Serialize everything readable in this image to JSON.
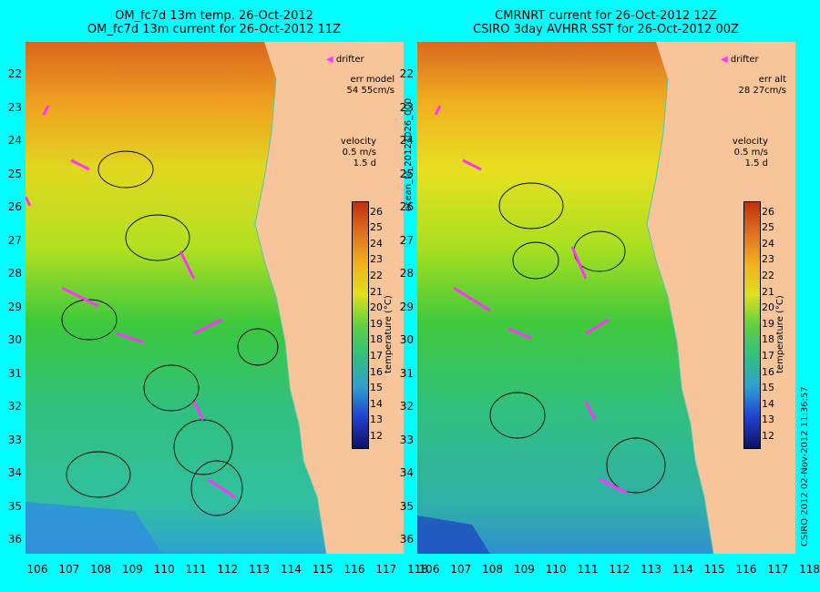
{
  "left_panel": {
    "title_line1": "OM_fc7d 13m temp. 26-Oct-2012",
    "title_line2": "OM_fc7d 13m current for 26-Oct-2012 11Z",
    "legend_drifter": "drifter",
    "err_label": "err model",
    "err_value": "54 55cm/s",
    "velocity_label": "velocity",
    "velocity_scale": "0.5 m/s",
    "velocity_days": "1.5 d"
  },
  "right_panel": {
    "title_line1": "CMRNRT current for 26-Oct-2012 12Z",
    "title_line2": "CSIRO 3day AVHRR SST for 26-Oct-2012 00Z",
    "legend_drifter": "drifter",
    "err_label": "err alt",
    "err_value": "28 27cm/s",
    "velocity_label": "velocity",
    "velocity_scale": "0.5 m/s",
    "velocity_days": "1.5 d"
  },
  "colorbar": {
    "label": "temperature (°C)",
    "ticks": [
      "12",
      "13",
      "14",
      "15",
      "16",
      "17",
      "18",
      "19",
      "20",
      "21",
      "22",
      "23",
      "24",
      "25",
      "26"
    ]
  },
  "axes": {
    "latitudes": [
      "22",
      "23",
      "24",
      "25",
      "26",
      "27",
      "28",
      "29",
      "30",
      "31",
      "32",
      "33",
      "34",
      "35",
      "36"
    ],
    "longitudes": [
      "106",
      "107",
      "108",
      "109",
      "110",
      "111",
      "112",
      "113",
      "114",
      "115",
      "116",
      "117",
      "118"
    ]
  },
  "side_labels": {
    "file_id": "ocean_fc_20121026_000",
    "credit": "CSIRO 2012   02-Nov-2012 11:36:57"
  },
  "colors": {
    "background": "#00ffff",
    "land": "#f8c49a",
    "drifter": "#ff33ff",
    "coast_line": "#4ec9b0"
  }
}
